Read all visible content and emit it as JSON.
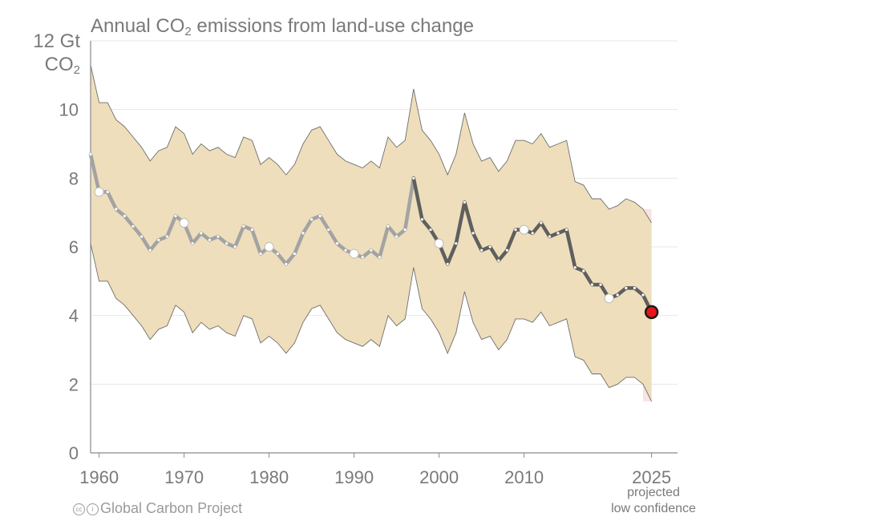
{
  "chart_data": {
    "type": "line",
    "title_main": "Annual CO",
    "title_sub": "2",
    "title_rest": " emissions from land-use change",
    "ylabel_line1": "12 Gt",
    "ylabel_line2_main": "CO",
    "ylabel_line2_sub": "2",
    "ylim": [
      0,
      12
    ],
    "xlim": [
      1959,
      2025
    ],
    "yticks": [
      0,
      2,
      4,
      6,
      8,
      10
    ],
    "ytick_labels": [
      "0",
      "2",
      "4",
      "6",
      "8",
      "10"
    ],
    "xticks": [
      1960,
      1970,
      1980,
      1990,
      2000,
      2010,
      2025
    ],
    "xtick_labels": [
      "1960",
      "1970",
      "1980",
      "1990",
      "2000",
      "2010",
      "2025"
    ],
    "grid": true,
    "projection_note_line1": "projected",
    "projection_note_line2": "low confidence",
    "x": [
      1959,
      1960,
      1961,
      1962,
      1963,
      1964,
      1965,
      1966,
      1967,
      1968,
      1969,
      1970,
      1971,
      1972,
      1973,
      1974,
      1975,
      1976,
      1977,
      1978,
      1979,
      1980,
      1981,
      1982,
      1983,
      1984,
      1985,
      1986,
      1987,
      1988,
      1989,
      1990,
      1991,
      1992,
      1993,
      1994,
      1995,
      1996,
      1997,
      1998,
      1999,
      2000,
      2001,
      2002,
      2003,
      2004,
      2005,
      2006,
      2007,
      2008,
      2009,
      2010,
      2011,
      2012,
      2013,
      2014,
      2015,
      2016,
      2017,
      2018,
      2019,
      2020,
      2021,
      2022,
      2023,
      2024,
      2025
    ],
    "series": [
      {
        "values": [
          8.7,
          7.6,
          7.6,
          7.1,
          6.9,
          6.6,
          6.3,
          5.9,
          6.2,
          6.3,
          6.9,
          6.7,
          6.1,
          6.4,
          6.2,
          6.3,
          6.1,
          6.0,
          6.6,
          6.5,
          5.8,
          6.0,
          5.8,
          5.5,
          5.8,
          6.4,
          6.8,
          6.9,
          6.5,
          6.1,
          5.9,
          5.8,
          5.7,
          5.9,
          5.7,
          6.6,
          6.3,
          6.5,
          8.0,
          6.8,
          6.5,
          6.1,
          5.5,
          6.1,
          7.3,
          6.4,
          5.9,
          6.0,
          5.6,
          5.9,
          6.5,
          6.5,
          6.4,
          6.7,
          6.3,
          6.4,
          6.5,
          5.4,
          5.3,
          4.9,
          4.9,
          4.5,
          4.6,
          4.8,
          4.8,
          4.6,
          4.1
        ]
      }
    ],
    "upper_bound": [
      11.3,
      10.2,
      10.2,
      9.7,
      9.5,
      9.2,
      8.9,
      8.5,
      8.8,
      8.9,
      9.5,
      9.3,
      8.7,
      9.0,
      8.8,
      8.9,
      8.7,
      8.6,
      9.2,
      9.1,
      8.4,
      8.6,
      8.4,
      8.1,
      8.4,
      9.0,
      9.4,
      9.5,
      9.1,
      8.7,
      8.5,
      8.4,
      8.3,
      8.5,
      8.3,
      9.2,
      8.9,
      9.1,
      10.6,
      9.4,
      9.1,
      8.7,
      8.1,
      8.7,
      9.9,
      9.0,
      8.5,
      8.6,
      8.2,
      8.5,
      9.1,
      9.1,
      9.0,
      9.3,
      8.9,
      9.0,
      9.1,
      7.9,
      7.8,
      7.4,
      7.4,
      7.1,
      7.2,
      7.4,
      7.3,
      7.1,
      6.7
    ],
    "lower_bound": [
      6.1,
      5.0,
      5.0,
      4.5,
      4.3,
      4.0,
      3.7,
      3.3,
      3.6,
      3.7,
      4.3,
      4.1,
      3.5,
      3.8,
      3.6,
      3.7,
      3.5,
      3.4,
      4.0,
      3.9,
      3.2,
      3.4,
      3.2,
      2.9,
      3.2,
      3.8,
      4.2,
      4.3,
      3.9,
      3.5,
      3.3,
      3.2,
      3.1,
      3.3,
      3.1,
      4.0,
      3.7,
      3.9,
      5.4,
      4.2,
      3.9,
      3.5,
      2.9,
      3.5,
      4.7,
      3.8,
      3.3,
      3.4,
      3.0,
      3.3,
      3.9,
      3.9,
      3.8,
      4.1,
      3.7,
      3.8,
      3.9,
      2.8,
      2.7,
      2.3,
      2.3,
      1.9,
      2.0,
      2.2,
      2.2,
      2.0,
      1.5
    ],
    "highlighted_points": [
      1960,
      1970,
      1980,
      1990,
      2000,
      2010,
      2020
    ],
    "colors": {
      "band": "#eedebb",
      "line_early": "#a3a3a3",
      "line_late": "#5f5f5f",
      "projection_shade": "#f8e2e2",
      "projection_point": "#e8141a",
      "axis": "#8a8a8a",
      "grid": "#e7e7e7",
      "text": "#7a7a7a"
    }
  },
  "footer": {
    "credit_icons": "cc-by-icons",
    "credit_text": "Global Carbon Project"
  }
}
